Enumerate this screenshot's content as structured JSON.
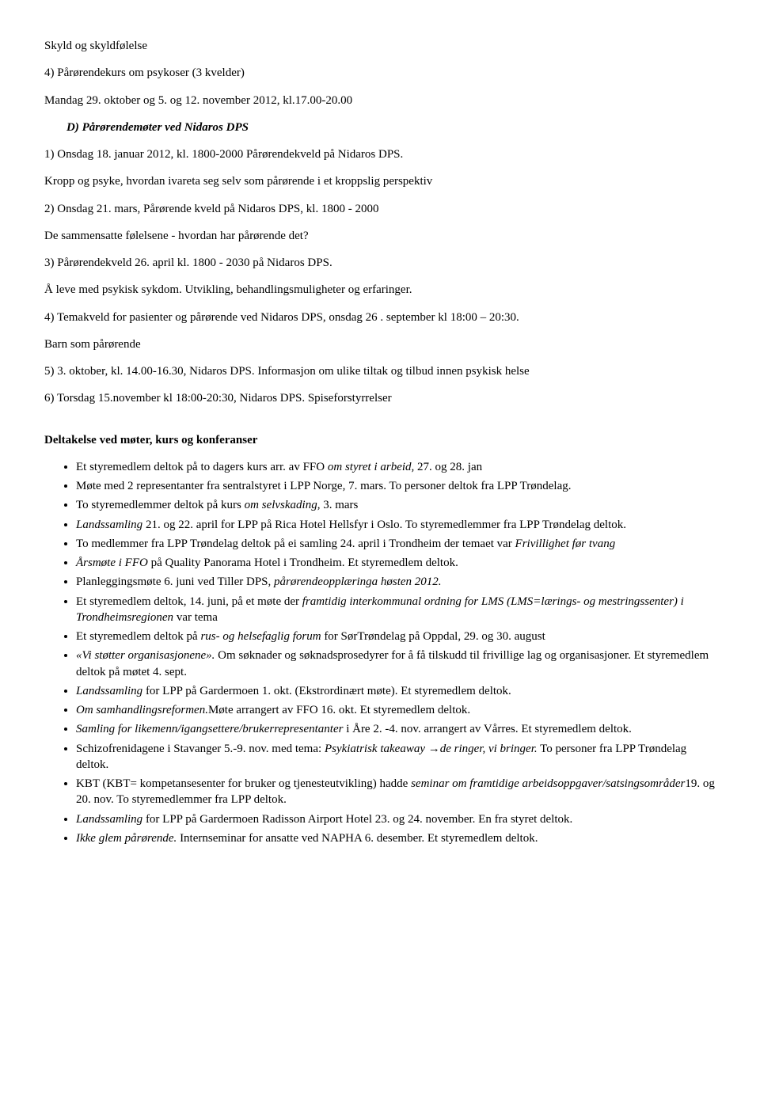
{
  "lines": {
    "l1": "Skyld og skyldfølelse",
    "l2": "4) Pårørendekurs om psykoser (3 kvelder)",
    "l3": "Mandag 29. oktober og 5. og 12. november 2012, kl.17.00-20.00",
    "l4a": "D) Pårørendemøter ved Nidaros DPS",
    "l5": "1) Onsdag 18. januar 2012, kl. 1800-2000 Pårørendekveld på Nidaros DPS.",
    "l6": "Kropp og psyke, hvordan ivareta seg selv som pårørende i et kroppslig perspektiv",
    "l7": "2) Onsdag 21. mars, Pårørende kveld på Nidaros DPS, kl. 1800 - 2000",
    "l8": "De sammensatte følelsene - hvordan har pårørende det?",
    "l9": "3) Pårørendekveld 26. april kl. 1800 - 2030 på Nidaros DPS.",
    "l10": "Å leve med psykisk sykdom. Utvikling, behandlingsmuligheter og erfaringer.",
    "l11": "4) Temakveld for pasienter og pårørende ved Nidaros DPS, onsdag 26 . september kl 18:00 – 20:30.",
    "l12": "Barn som pårørende",
    "l13": "5) 3. oktober, kl. 14.00-16.30, Nidaros DPS. Informasjon om ulike tiltak og tilbud innen psykisk helse",
    "l14": "6) Torsdag 15.november kl 18:00-20:30, Nidaros DPS. Spiseforstyrrelser",
    "heading2": "Deltakelse ved møter, kurs og konferanser"
  },
  "bullets": [
    {
      "html": "Et styremedlem deltok på to dagers kurs arr. av FFO <i>om styret i arbeid,</i> 27. og 28. jan"
    },
    {
      "html": "Møte med 2 representanter fra sentralstyret i LPP Norge, 7. mars. To personer deltok fra LPP Trøndelag."
    },
    {
      "html": "To styremedlemmer deltok på kurs <i>om selvskading</i>, 3. mars"
    },
    {
      "html": "<i>Landssamling</i> 21. og 22. april for LPP på Rica Hotel Hellsfyr i Oslo. To styremedlemmer fra LPP Trøndelag deltok."
    },
    {
      "html": "To medlemmer fra LPP Trøndelag deltok på ei samling 24. april i Trondheim der temaet var <i>Frivillighet før tvang</i>"
    },
    {
      "html": "<i>Årsmøte i FFO</i> på Quality Panorama Hotel i Trondheim. Et styremedlem deltok."
    },
    {
      "html": "Planleggingsmøte 6. juni ved Tiller DPS, <i>pårørendeopplæringa høsten 2012.</i>"
    },
    {
      "html": "Et styremedlem deltok, 14. juni, på et møte der <i>framtidig interkommunal ordning for LMS (LMS=lærings- og mestringssenter) i Trondheimsregionen</i> var tema"
    },
    {
      "html": "Et styremedlem deltok på <i>rus- og helsefaglig forum</i> for SørTrøndelag på Oppdal, 29. og 30. august"
    },
    {
      "html": "<i>«Vi støtter organisasjonene».</i> Om søknader og søknadsprosedyrer for å få tilskudd til frivillige lag og organisasjoner. Et styremedlem deltok på møtet 4. sept."
    },
    {
      "html": "<i>Landssamling</i> for LPP på Gardermoen 1. okt. (Ekstrordinært møte). Et styremedlem deltok."
    },
    {
      "html": "<i>Om samhandlingsreformen.</i>Møte arrangert av FFO 16. okt. Et styremedlem deltok."
    },
    {
      "html": "<i>Samling for likemenn/igangsettere/brukerrepresentanter</i> i Åre 2. -4. nov. arrangert av Vårres. Et styremedlem deltok."
    },
    {
      "html": "Schizofrenidagene i Stavanger 5.-9. nov. med tema: <i>Psykiatrisk takeaway →de ringer, vi bringer.</i> To personer fra LPP Trøndelag deltok."
    },
    {
      "html": "KBT (KBT= kompetansesenter for bruker og tjenesteutvikling) hadde <i>seminar om framtidige arbeidsoppgaver/satsingsområder</i>19. og 20. nov. To styremedlemmer fra LPP deltok."
    },
    {
      "html": "<i>Landssamling</i> for LPP på Gardermoen Radisson Airport Hotel 23. og 24. november. En fra styret deltok."
    },
    {
      "html": "<i>Ikke glem pårørende.</i> Internseminar for ansatte ved NAPHA 6. desember. Et styremedlem deltok."
    }
  ]
}
